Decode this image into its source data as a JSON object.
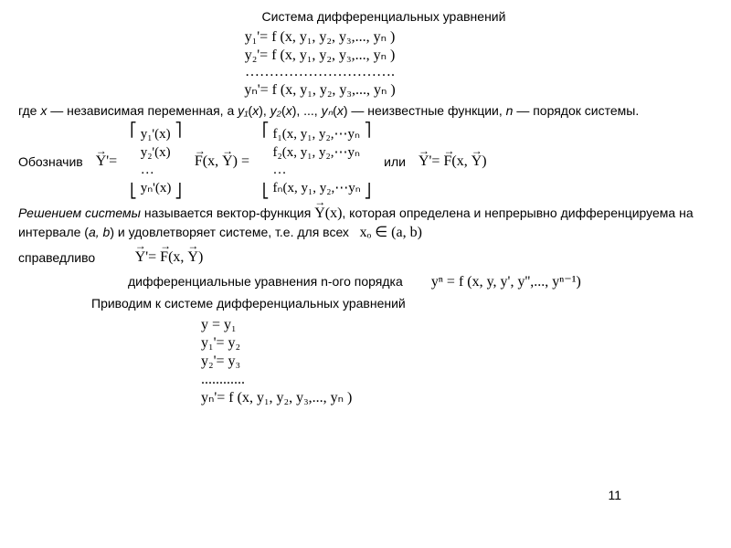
{
  "title": "Система дифференциальных уравнений",
  "sys": {
    "eq1": "y₁'= f (x, y₁, y₂, y₃,..., yₙ )",
    "eq2": "y₂'= f (x, y₁, y₂, y₃,..., yₙ )",
    "dots": "………………………….",
    "eqn": "yₙ'= f (x, y₁, y₂, y₃,..., yₙ )"
  },
  "where_text": {
    "p1": "где ",
    "x": "x",
    "p2": " — независимая переменная, а  ",
    "y1": "y₁",
    "p3": "(",
    "xv": "x",
    "p4": "), ",
    "y2": "y₂",
    "p5": "(",
    "p6": "), ..., ",
    "yn": "yₙ",
    "p7": "(",
    "p8": ") — неизвестные функции, ",
    "n": "n",
    "p9": " — порядок системы."
  },
  "denote": "Обозначив",
  "yprime_lhs": "Y'=",
  "yprime_rows": {
    "r1": "y₁'(x)",
    "r2": "y₂'(x)",
    "r3": "…",
    "r4": "yₙ'(x)"
  },
  "F_lhs": "F(x, Y) =",
  "F_rows": {
    "r1": "f₁(x, y₁, y₂,⋯yₙ",
    "r2": "f₂(x, y₁, y₂,⋯yₙ",
    "r3": "…",
    "r4": "fₙ(x, y₁, y₂,⋯yₙ"
  },
  "or": "или",
  "eq_vec": "Y'= F(x, Y)",
  "solution": {
    "p1": "Решением системы",
    "p2": " называется вектор-функция ",
    "yx": "Y(x)",
    "p3": ", которая определена и непрерывно дифференцируема на интервале (",
    "a": "a, b",
    "p4": ") и удовлетворяет системе, т.е. для всех",
    "x0": "xₒ ∈ (a, b)"
  },
  "valid": "справедливо",
  "nth_order_label": "дифференциальные уравнения n-ого порядка",
  "nth_order_eq": "yⁿ = f (x, y, y', y'',..., yⁿ⁻¹)",
  "reduce": "Приводим к системе дифференциальных уравнений",
  "reduce_sys": {
    "r1": "y = y₁",
    "r2": "y₁'= y₂",
    "r3": "y₂'= y₃",
    "r4": "............",
    "r5": "yₙ'= f (x, y₁, y₂, y₃,..., yₙ )"
  },
  "page": "11"
}
